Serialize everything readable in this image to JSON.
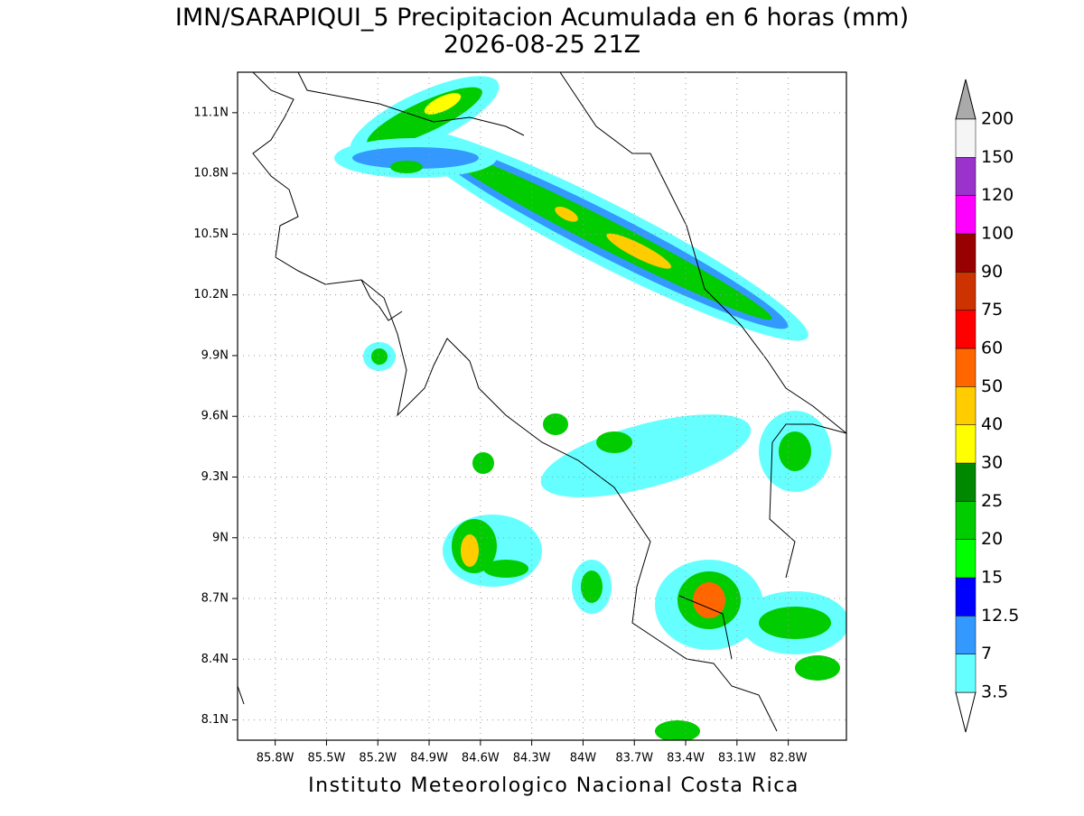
{
  "title": "IMN/SARAPIQUI_5 Precipitacion Acumulada en 6 horas (mm)",
  "subtitle": "2026-08-25 21Z",
  "map": {
    "xlim": [
      -86.02,
      -82.46
    ],
    "ylim": [
      8.0,
      11.3
    ],
    "grid": true,
    "xticks": [
      {
        "value": -85.8,
        "label": "85.8W"
      },
      {
        "value": -85.5,
        "label": "85.5W"
      },
      {
        "value": -85.2,
        "label": "85.2W"
      },
      {
        "value": -84.9,
        "label": "84.9W"
      },
      {
        "value": -84.6,
        "label": "84.6W"
      },
      {
        "value": -84.3,
        "label": "84.3W"
      },
      {
        "value": -84.0,
        "label": "84W"
      },
      {
        "value": -83.7,
        "label": "83.7W"
      },
      {
        "value": -83.4,
        "label": "83.4W"
      },
      {
        "value": -83.1,
        "label": "83.1W"
      },
      {
        "value": -82.8,
        "label": "82.8W"
      }
    ],
    "yticks": [
      {
        "value": 8.1,
        "label": "8.1N"
      },
      {
        "value": 8.4,
        "label": "8.4N"
      },
      {
        "value": 8.7,
        "label": "8.7N"
      },
      {
        "value": 9.0,
        "label": "9N"
      },
      {
        "value": 9.3,
        "label": "9.3N"
      },
      {
        "value": 9.6,
        "label": "9.6N"
      },
      {
        "value": 9.9,
        "label": "9.9N"
      },
      {
        "value": 10.2,
        "label": "10.2N"
      },
      {
        "value": 10.5,
        "label": "10.5N"
      },
      {
        "value": 10.8,
        "label": "10.8N"
      },
      {
        "value": 11.1,
        "label": "11.1N"
      }
    ]
  },
  "colorbar": {
    "levels": [
      3.5,
      7,
      12.5,
      15,
      20,
      25,
      30,
      40,
      50,
      60,
      75,
      90,
      100,
      120,
      150,
      200
    ],
    "under_color": "#ffffff",
    "colors": [
      "#66ffff",
      "#3399ff",
      "#0000ff",
      "#00ff00",
      "#00cc00",
      "#008800",
      "#ffff00",
      "#ffcc00",
      "#ff6600",
      "#ff0000",
      "#cc3300",
      "#990000",
      "#ff00ff",
      "#9933cc",
      "#f5f5f5"
    ],
    "over_color": "#aaaaaa"
  },
  "footer": "Instituto Meteorologico Nacional Costa Rica"
}
